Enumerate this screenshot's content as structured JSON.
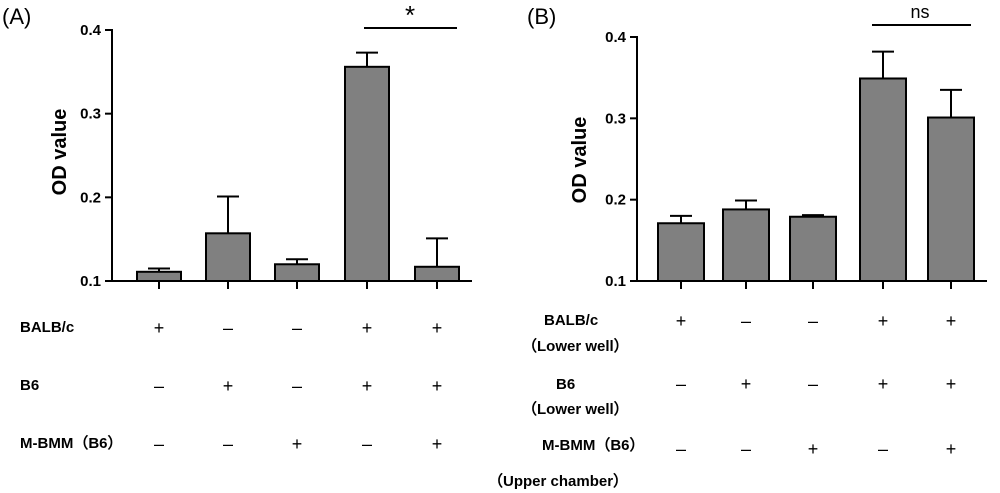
{
  "chart_data": [
    {
      "type": "bar",
      "panel_label": "(A)",
      "title": "",
      "ylabel": "OD value",
      "xlabel": "",
      "ylim": [
        0.1,
        0.4
      ],
      "yticks": [
        "0.1",
        "0.2",
        "0.3",
        "0.4"
      ],
      "ytick_values": [
        0.1,
        0.2,
        0.3,
        0.4
      ],
      "values": [
        0.111,
        0.157,
        0.12,
        0.356,
        0.117
      ],
      "errors": [
        0.004,
        0.044,
        0.006,
        0.017,
        0.034
      ],
      "bar_color": "#808080",
      "significance": {
        "text": "*",
        "between": [
          3,
          4
        ]
      },
      "rows": [
        {
          "label": "BALB/c",
          "sub": "",
          "signs": [
            "+",
            "–",
            "–",
            "+",
            "+"
          ]
        },
        {
          "label": "B6",
          "sub": "",
          "signs": [
            "–",
            "+",
            "–",
            "+",
            "+"
          ]
        },
        {
          "label": "M-BMM（B6）",
          "sub": "",
          "signs": [
            "–",
            "–",
            "+",
            "–",
            "+"
          ]
        }
      ]
    },
    {
      "type": "bar",
      "panel_label": "(B)",
      "title": "",
      "ylabel": "OD value",
      "xlabel": "",
      "ylim": [
        0.1,
        0.4
      ],
      "yticks": [
        "0.1",
        "0.2",
        "0.3",
        "0.4"
      ],
      "ytick_values": [
        0.1,
        0.2,
        0.3,
        0.4
      ],
      "values": [
        0.171,
        0.188,
        0.179,
        0.349,
        0.301
      ],
      "errors": [
        0.009,
        0.011,
        0.002,
        0.033,
        0.034
      ],
      "bar_color": "#808080",
      "significance": {
        "text": "ns",
        "between": [
          3,
          4
        ]
      },
      "rows": [
        {
          "label": "BALB/c",
          "sub": "（Lower well）",
          "signs": [
            "+",
            "–",
            "–",
            "+",
            "+"
          ]
        },
        {
          "label": "B6",
          "sub": "（Lower well）",
          "signs": [
            "–",
            "+",
            "–",
            "+",
            "+"
          ]
        },
        {
          "label": "M-BMM（B6）",
          "sub": "（Upper chamber）",
          "signs": [
            "–",
            "–",
            "+",
            "–",
            "+"
          ]
        }
      ]
    }
  ]
}
